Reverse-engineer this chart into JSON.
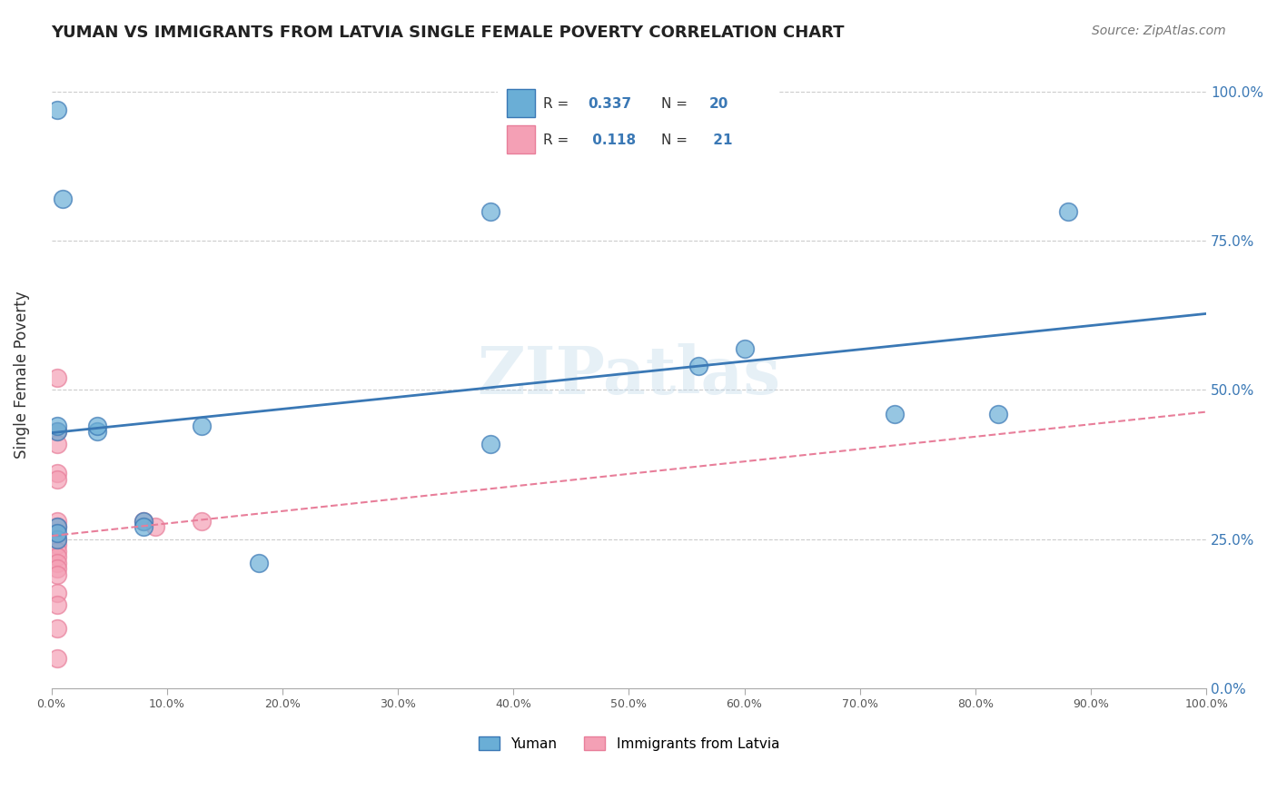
{
  "title": "YUMAN VS IMMIGRANTS FROM LATVIA SINGLE FEMALE POVERTY CORRELATION CHART",
  "source": "Source: ZipAtlas.com",
  "ylabel": "Single Female Poverty",
  "xlabel_ticks": [
    "0.0%",
    "10.0%",
    "20.0%",
    "30.0%",
    "40.0%",
    "50.0%",
    "60.0%",
    "70.0%",
    "80.0%",
    "90.0%",
    "100.0%"
  ],
  "ylabel_ticks": [
    "0.0%",
    "25.0%",
    "50.0%",
    "75.0%",
    "100.0%"
  ],
  "watermark": "ZIPatlas",
  "legend_label1": "Yuman",
  "legend_label2": "Immigrants from Latvia",
  "R1": 0.337,
  "N1": 20,
  "R2": 0.118,
  "N2": 21,
  "blue_color": "#6aaed6",
  "pink_color": "#f4a0b5",
  "blue_line_color": "#3a78b5",
  "pink_line_color": "#e87e9a",
  "blue_scatter": [
    [
      0.005,
      0.97
    ],
    [
      0.01,
      0.82
    ],
    [
      0.38,
      0.8
    ],
    [
      0.88,
      0.8
    ],
    [
      0.13,
      0.44
    ],
    [
      0.005,
      0.43
    ],
    [
      0.005,
      0.44
    ],
    [
      0.04,
      0.43
    ],
    [
      0.04,
      0.44
    ],
    [
      0.38,
      0.41
    ],
    [
      0.56,
      0.54
    ],
    [
      0.6,
      0.57
    ],
    [
      0.73,
      0.46
    ],
    [
      0.82,
      0.46
    ],
    [
      0.005,
      0.25
    ],
    [
      0.005,
      0.27
    ],
    [
      0.005,
      0.26
    ],
    [
      0.18,
      0.21
    ],
    [
      0.08,
      0.28
    ],
    [
      0.08,
      0.27
    ]
  ],
  "pink_scatter": [
    [
      0.005,
      0.52
    ],
    [
      0.005,
      0.43
    ],
    [
      0.005,
      0.41
    ],
    [
      0.005,
      0.36
    ],
    [
      0.005,
      0.35
    ],
    [
      0.005,
      0.28
    ],
    [
      0.005,
      0.27
    ],
    [
      0.005,
      0.25
    ],
    [
      0.005,
      0.24
    ],
    [
      0.005,
      0.23
    ],
    [
      0.005,
      0.22
    ],
    [
      0.005,
      0.21
    ],
    [
      0.005,
      0.2
    ],
    [
      0.005,
      0.19
    ],
    [
      0.005,
      0.16
    ],
    [
      0.005,
      0.14
    ],
    [
      0.005,
      0.1
    ],
    [
      0.005,
      0.05
    ],
    [
      0.08,
      0.28
    ],
    [
      0.09,
      0.27
    ],
    [
      0.13,
      0.28
    ]
  ],
  "xlim": [
    0.0,
    1.0
  ],
  "ylim": [
    0.0,
    1.05
  ],
  "figsize": [
    14.06,
    8.92
  ],
  "dpi": 100
}
